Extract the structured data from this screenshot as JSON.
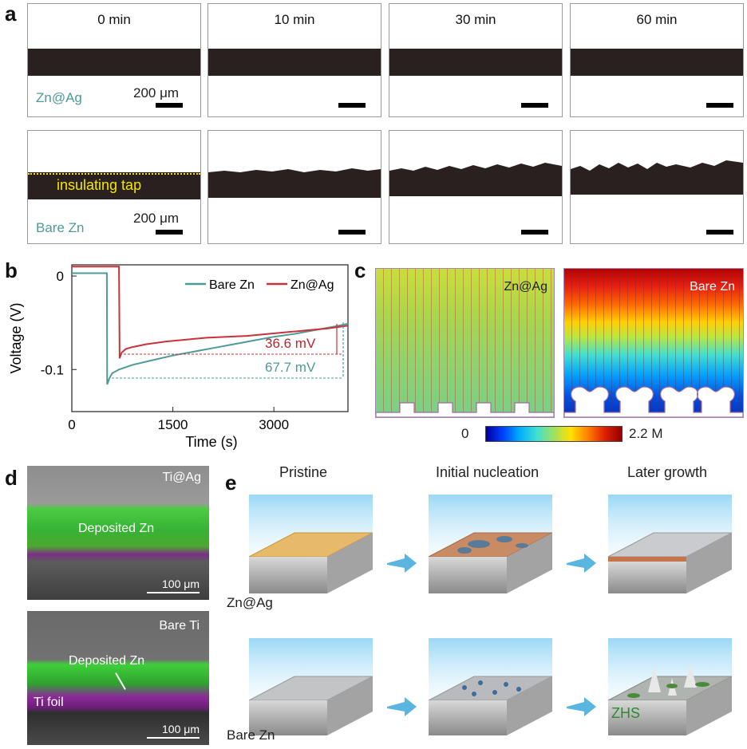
{
  "panel_labels": {
    "a": "a",
    "b": "b",
    "c": "c",
    "d": "d",
    "e": "e"
  },
  "panel_a": {
    "times": [
      "0 min",
      "10 min",
      "30 min",
      "60 min"
    ],
    "row1_label": "Zn@Ag",
    "row2_label": "Bare Zn",
    "scale_label_1": "200 μm",
    "scale_label_2": "200 μm",
    "insulating_label": "insulating tap",
    "colors": {
      "strip": "#2a2020",
      "insulating_line": "#f2e600",
      "label_teal": "#4e9a9a"
    }
  },
  "panel_b": {
    "ylabel": "Voltage (V)",
    "xlabel": "Time (s)",
    "legend": [
      "Bare Zn",
      "Zn@Ag"
    ],
    "annotation_1": "36.6 mV",
    "annotation_2": "67.7 mV",
    "x_ticks": [
      "0",
      "1500",
      "3000"
    ],
    "y_ticks": [
      "0",
      "-0.1"
    ]
  },
  "chart_data": {
    "type": "line",
    "xlabel": "Time (s)",
    "ylabel": "Voltage (V)",
    "xlim": [
      0,
      4100
    ],
    "ylim": [
      -0.145,
      0.012
    ],
    "series": [
      {
        "name": "Bare Zn",
        "color": "#4e9a9a",
        "x": [
          0,
          520,
          525,
          560,
          600,
          700,
          900,
          1200,
          1500,
          1800,
          2100,
          2400,
          2700,
          3000,
          3300,
          3600,
          3900,
          4100
        ],
        "y": [
          0.003,
          0.003,
          -0.116,
          -0.109,
          -0.104,
          -0.1,
          -0.095,
          -0.09,
          -0.085,
          -0.081,
          -0.077,
          -0.073,
          -0.069,
          -0.065,
          -0.062,
          -0.058,
          -0.054,
          -0.051
        ]
      },
      {
        "name": "Zn@Ag",
        "color": "#c8323a",
        "x": [
          0,
          700,
          710,
          740,
          800,
          900,
          1100,
          1400,
          1700,
          2000,
          2300,
          2600,
          2900,
          3200,
          3500,
          3800,
          4100
        ],
        "y": [
          0.01,
          0.01,
          -0.088,
          -0.082,
          -0.078,
          -0.076,
          -0.073,
          -0.07,
          -0.068,
          -0.066,
          -0.065,
          -0.064,
          -0.062,
          -0.06,
          -0.058,
          -0.056,
          -0.053
        ]
      }
    ]
  },
  "panel_c": {
    "left_label": "Zn@Ag",
    "right_label": "Bare Zn",
    "colorbar_min": "0",
    "colorbar_max": "2.2 M"
  },
  "panel_d": {
    "top_label": "Ti@Ag",
    "top_deposit": "Deposited Zn",
    "top_scale": "100 μm",
    "bottom_label": "Bare Ti",
    "bottom_deposit": "Deposited Zn",
    "bottom_foil": "Ti foil",
    "bottom_scale": "100 μm"
  },
  "panel_e": {
    "headers": [
      "Pristine",
      "Initial nucleation",
      "Later growth"
    ],
    "row1_label": "Zn@Ag",
    "row2_label": "Bare Zn",
    "zhs_label": "ZHS"
  }
}
